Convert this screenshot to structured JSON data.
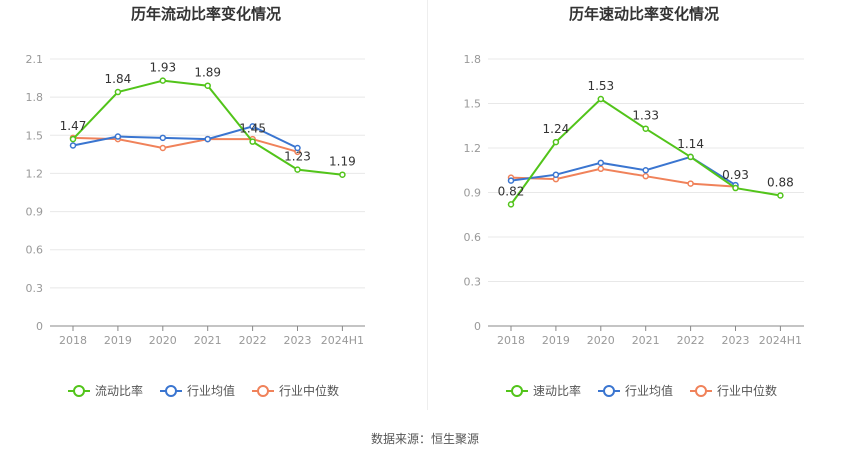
{
  "charts": [
    {
      "title": "历年流动比率变化情况",
      "legend": [
        "流动比率",
        "行业均值",
        "行业中位数"
      ]
    },
    {
      "title": "历年速动比率变化情况",
      "legend": [
        "速动比率",
        "行业均值",
        "行业中位数"
      ]
    }
  ],
  "footer": {
    "label": "数据来源：",
    "source": "恒生聚源"
  },
  "colors": {
    "main": "#52c41a",
    "avg": "#3a75d0",
    "median": "#f0825a",
    "grid": "#e8e8e8",
    "axis": "#999999"
  },
  "chart_data": [
    {
      "type": "line",
      "title": "历年流动比率变化情况",
      "categories": [
        "2018",
        "2019",
        "2020",
        "2021",
        "2022",
        "2023",
        "2024H1"
      ],
      "ylim": [
        0,
        2.1
      ],
      "yticks": [
        "0",
        "0.3",
        "0.6",
        "0.9",
        "1.2",
        "1.5",
        "1.8",
        "2.1"
      ],
      "grid": true,
      "legend_position": "bottom",
      "series": [
        {
          "name": "流动比率",
          "values": [
            1.47,
            1.84,
            1.93,
            1.89,
            1.45,
            1.23,
            1.19
          ],
          "labeled": true
        },
        {
          "name": "行业均值",
          "values": [
            1.42,
            1.49,
            1.48,
            1.47,
            1.57,
            1.4,
            null
          ],
          "labeled": false
        },
        {
          "name": "行业中位数",
          "values": [
            1.48,
            1.47,
            1.4,
            1.47,
            1.47,
            1.37,
            null
          ],
          "labeled": false
        }
      ]
    },
    {
      "type": "line",
      "title": "历年速动比率变化情况",
      "categories": [
        "2018",
        "2019",
        "2020",
        "2021",
        "2022",
        "2023",
        "2024H1"
      ],
      "ylim": [
        0,
        1.8
      ],
      "yticks": [
        "0",
        "0.3",
        "0.6",
        "0.9",
        "1.2",
        "1.5",
        "1.8"
      ],
      "grid": true,
      "legend_position": "bottom",
      "series": [
        {
          "name": "速动比率",
          "values": [
            0.82,
            1.24,
            1.53,
            1.33,
            1.14,
            0.93,
            0.88
          ],
          "labeled": true
        },
        {
          "name": "行业均值",
          "values": [
            0.98,
            1.02,
            1.1,
            1.05,
            1.14,
            0.95,
            null
          ],
          "labeled": false
        },
        {
          "name": "行业中位数",
          "values": [
            1.0,
            0.99,
            1.06,
            1.01,
            0.96,
            0.94,
            null
          ],
          "labeled": false
        }
      ]
    }
  ]
}
